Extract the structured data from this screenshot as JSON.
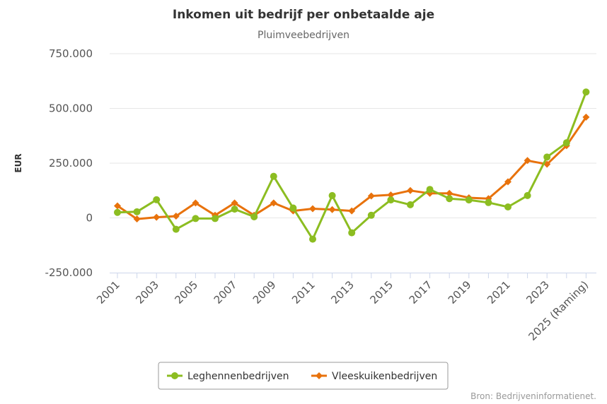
{
  "chart_data": {
    "type": "line",
    "title": "Inkomen uit bedrijf per onbetaalde aje",
    "subtitle": "Pluimveebedrijven",
    "ylabel": "EUR",
    "xlabel": "",
    "ylim": [
      -250000,
      750000
    ],
    "yticks": [
      -250000,
      0,
      250000,
      500000,
      750000
    ],
    "ytick_labels": [
      "-250.000",
      "0",
      "250.000",
      "500.000",
      "750.000"
    ],
    "categories": [
      "2001",
      "2002",
      "2003",
      "2004",
      "2005",
      "2006",
      "2007",
      "2008",
      "2009",
      "2010",
      "2011",
      "2012",
      "2013",
      "2014",
      "2015",
      "2016",
      "2017",
      "2018",
      "2019",
      "2020",
      "2021",
      "2022",
      "2023",
      "2024",
      "2025 (Raming)"
    ],
    "xtick_labels": [
      "2001",
      "",
      "2003",
      "",
      "2005",
      "",
      "2007",
      "",
      "2009",
      "",
      "2011",
      "",
      "2013",
      "",
      "2015",
      "",
      "2017",
      "",
      "2019",
      "",
      "2021",
      "",
      "2023",
      "",
      "2025 (Raming)"
    ],
    "series": [
      {
        "name": "Leghennenbedrijven",
        "color": "#8cbd21",
        "marker": "circle",
        "values": [
          25000,
          28000,
          83000,
          -52000,
          -3000,
          -3000,
          40000,
          5000,
          190000,
          45000,
          -97000,
          102000,
          -68000,
          12000,
          82000,
          60000,
          130000,
          88000,
          82000,
          70000,
          50000,
          102000,
          278000,
          343000,
          575000
        ]
      },
      {
        "name": "Vleeskuikenbedrijven",
        "color": "#e8720c",
        "marker": "diamond",
        "values": [
          55000,
          -5000,
          3000,
          8000,
          68000,
          12000,
          68000,
          12000,
          68000,
          32000,
          42000,
          38000,
          32000,
          100000,
          105000,
          125000,
          112000,
          112000,
          92000,
          88000,
          165000,
          262000,
          245000,
          330000,
          460000
        ]
      }
    ],
    "grid": true,
    "legend_position": "bottom-center",
    "credit": "Bron: Bedrijveninformatienet."
  }
}
